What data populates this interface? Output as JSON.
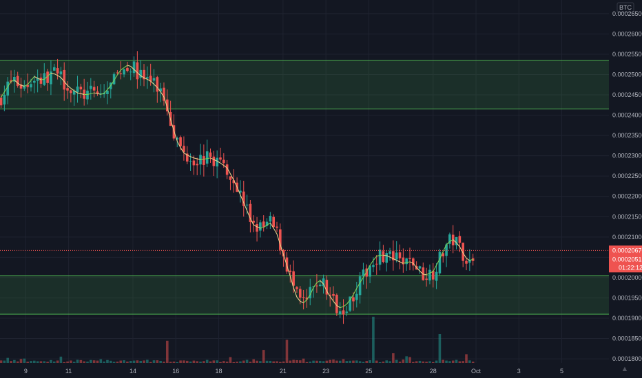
{
  "chart_data": {
    "type": "candlestick",
    "price_unit": "BTC",
    "ylim": [
      0.000179,
      0.000267
    ],
    "y_ticks": [
      "0.00026500",
      "0.00026000",
      "0.00025500",
      "0.00025000",
      "0.00024500",
      "0.00024000",
      "0.00023500",
      "0.00023000",
      "0.00022500",
      "0.00022000",
      "0.00021500",
      "0.00021000",
      "0.00020500",
      "0.00020000",
      "0.00019500",
      "0.00019000",
      "0.00018500",
      "0.00018000"
    ],
    "x_ticks": [
      "9",
      "11",
      "14",
      "16",
      "18",
      "21",
      "23",
      "25",
      "28",
      "Oct",
      "3",
      "5"
    ],
    "x_tick_days": [
      9,
      11,
      14,
      16,
      18,
      21,
      23,
      25,
      28,
      30,
      32,
      34
    ],
    "x_range_days": [
      7.8,
      36.2
    ],
    "last_day": 29.95,
    "price_labels": [
      "0.00020670",
      "0.00020518"
    ],
    "countdown": "01:22:12",
    "zones": [
      {
        "from": 0.0002415,
        "to": 0.0002535
      },
      {
        "from": 0.000191,
        "to": 0.0002005
      }
    ],
    "close_path": [
      [
        7.8,
        0.000244
      ],
      [
        8.1,
        0.0002465
      ],
      [
        8.4,
        0.000249
      ],
      [
        8.7,
        0.0002475
      ],
      [
        9.0,
        0.000247
      ],
      [
        9.4,
        0.0002495
      ],
      [
        9.8,
        0.0002485
      ],
      [
        10.2,
        0.0002505
      ],
      [
        10.6,
        0.0002495
      ],
      [
        11.0,
        0.000247
      ],
      [
        11.4,
        0.0002455
      ],
      [
        11.8,
        0.000245
      ],
      [
        12.2,
        0.0002455
      ],
      [
        12.6,
        0.000245
      ],
      [
        13.0,
        0.0002475
      ],
      [
        13.4,
        0.000251
      ],
      [
        13.8,
        0.0002525
      ],
      [
        14.1,
        0.000251
      ],
      [
        14.4,
        0.0002495
      ],
      [
        14.8,
        0.0002485
      ],
      [
        15.2,
        0.0002465
      ],
      [
        15.5,
        0.000244
      ],
      [
        15.8,
        0.000238
      ],
      [
        16.1,
        0.000233
      ],
      [
        16.4,
        0.0002305
      ],
      [
        16.8,
        0.0002295
      ],
      [
        17.2,
        0.000229
      ],
      [
        17.6,
        0.0002295
      ],
      [
        18.0,
        0.0002285
      ],
      [
        18.4,
        0.000227
      ],
      [
        18.8,
        0.000223
      ],
      [
        19.2,
        0.000218
      ],
      [
        19.6,
        0.000213
      ],
      [
        20.0,
        0.000212
      ],
      [
        20.4,
        0.0002135
      ],
      [
        20.7,
        0.000211
      ],
      [
        21.0,
        0.000206
      ],
      [
        21.3,
        0.000201
      ],
      [
        21.6,
        0.0001955
      ],
      [
        21.9,
        0.0001935
      ],
      [
        22.2,
        0.000195
      ],
      [
        22.5,
        0.0001985
      ],
      [
        22.8,
        0.0001995
      ],
      [
        23.0,
        0.000197
      ],
      [
        23.3,
        0.0001945
      ],
      [
        23.6,
        0.0001925
      ],
      [
        23.9,
        0.000193
      ],
      [
        24.2,
        0.000195
      ],
      [
        24.5,
        0.000198
      ],
      [
        24.8,
        0.0002005
      ],
      [
        25.1,
        0.0002035
      ],
      [
        25.4,
        0.0002055
      ],
      [
        25.8,
        0.0002055
      ],
      [
        26.2,
        0.0002045
      ],
      [
        26.6,
        0.0002035
      ],
      [
        27.0,
        0.000204
      ],
      [
        27.3,
        0.000202
      ],
      [
        27.6,
        0.0002005
      ],
      [
        28.0,
        0.0002015
      ],
      [
        28.3,
        0.0002045
      ],
      [
        28.6,
        0.000208
      ],
      [
        28.9,
        0.0002095
      ],
      [
        29.2,
        0.000208
      ],
      [
        29.5,
        0.000205
      ],
      [
        29.75,
        0.000204
      ],
      [
        29.95,
        0.000205
      ]
    ],
    "volume_spikes": [
      [
        15.6,
        0.46
      ],
      [
        20.1,
        0.27
      ],
      [
        21.2,
        0.48
      ],
      [
        25.2,
        0.96
      ],
      [
        28.3,
        0.6
      ],
      [
        10.6,
        0.13
      ],
      [
        26.1,
        0.2
      ],
      [
        29.6,
        0.18
      ]
    ]
  }
}
